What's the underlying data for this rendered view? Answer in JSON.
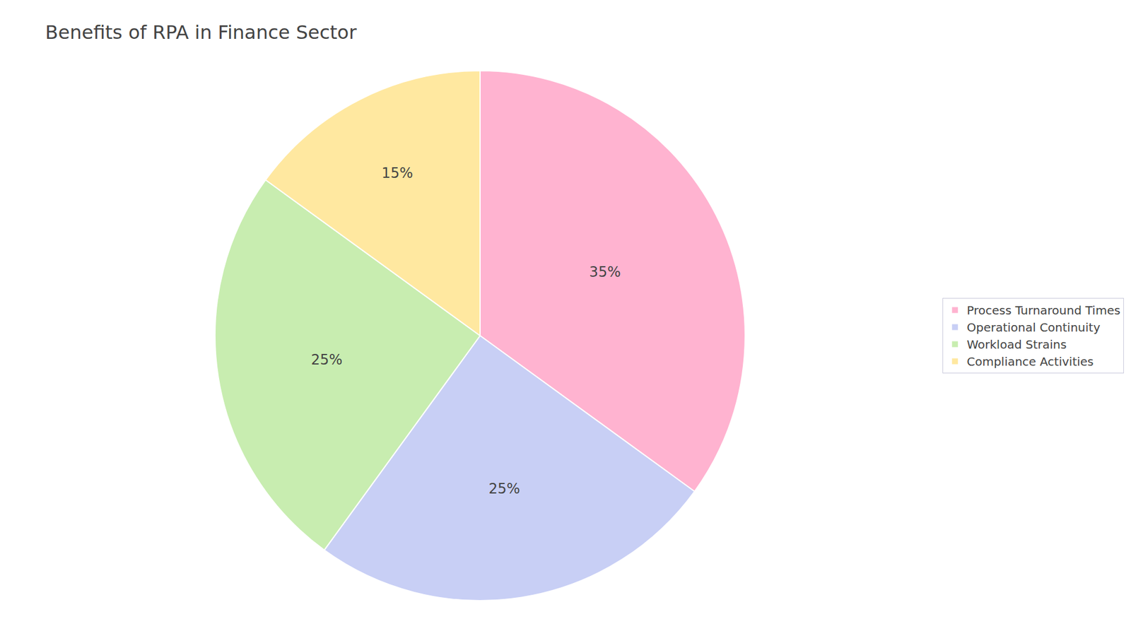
{
  "chart_data": {
    "type": "pie",
    "title": "Benefits of RPA in Finance Sector",
    "categories": [
      "Process Turnaround Times",
      "Operational Continuity",
      "Workload Strains",
      "Compliance Activities"
    ],
    "values": [
      35,
      25,
      25,
      15
    ],
    "value_labels": [
      "35%",
      "25%",
      "25%",
      "15%"
    ],
    "colors": [
      "#FFB3D0",
      "#C8CFF5",
      "#C8EDB0",
      "#FFE8A0"
    ],
    "data_labels": true,
    "legend": "right"
  }
}
